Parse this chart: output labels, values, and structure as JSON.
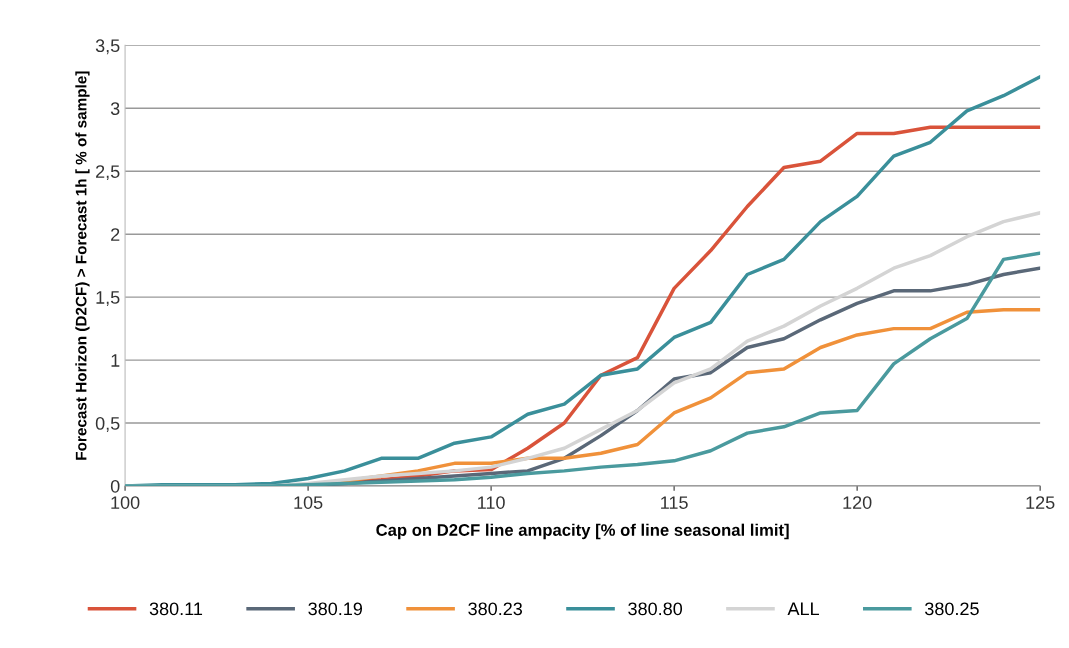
{
  "chart_data": {
    "type": "line",
    "xlabel": "Cap on D2CF line ampacity [% of line seasonal limit]",
    "ylabel": "Forecast Horizon (D2CF) > Forecast 1h [ % of sample]",
    "x": [
      100,
      101,
      102,
      103,
      104,
      105,
      106,
      107,
      108,
      109,
      110,
      111,
      112,
      113,
      114,
      115,
      116,
      117,
      118,
      119,
      120,
      121,
      122,
      123,
      124,
      125
    ],
    "series": [
      {
        "name": "380.11",
        "color": "#d9533a",
        "values": [
          null,
          null,
          null,
          null,
          null,
          0,
          0.03,
          0.05,
          0.08,
          0.12,
          0.13,
          0.3,
          0.5,
          0.88,
          1.02,
          1.57,
          1.87,
          2.22,
          2.53,
          2.58,
          2.8,
          2.8,
          2.85,
          2.85,
          2.85,
          2.85
        ]
      },
      {
        "name": "380.19",
        "color": "#5a6878",
        "values": [
          0,
          0,
          0,
          0,
          0,
          0,
          0.02,
          0.04,
          0.06,
          0.08,
          0.1,
          0.12,
          0.22,
          0.4,
          0.6,
          0.85,
          0.9,
          1.1,
          1.17,
          1.32,
          1.45,
          1.55,
          1.55,
          1.6,
          1.68,
          1.73
        ]
      },
      {
        "name": "380.23",
        "color": "#f0913a",
        "values": [
          null,
          null,
          null,
          null,
          null,
          0,
          0.04,
          0.08,
          0.12,
          0.18,
          0.18,
          0.22,
          0.22,
          0.26,
          0.33,
          0.58,
          0.7,
          0.9,
          0.93,
          1.1,
          1.2,
          1.25,
          1.25,
          1.38,
          1.4,
          1.4
        ]
      },
      {
        "name": "380.80",
        "color": "#3a8f9a",
        "values": [
          0,
          0.01,
          0.01,
          0.01,
          0.02,
          0.06,
          0.12,
          0.22,
          0.22,
          0.34,
          0.39,
          0.57,
          0.65,
          0.88,
          0.93,
          1.18,
          1.3,
          1.68,
          1.8,
          2.1,
          2.3,
          2.62,
          2.73,
          2.98,
          3.1,
          3.25
        ]
      },
      {
        "name": "ALL",
        "color": "#d4d4d4",
        "values": [
          0,
          0,
          0,
          0,
          0,
          0.02,
          0.05,
          0.08,
          0.1,
          0.12,
          0.15,
          0.22,
          0.3,
          0.45,
          0.6,
          0.82,
          0.93,
          1.15,
          1.27,
          1.43,
          1.57,
          1.73,
          1.83,
          1.98,
          2.1,
          2.17
        ]
      },
      {
        "name": "380.25",
        "color": "#4a9a9e",
        "values": [
          0,
          0,
          0,
          0,
          0,
          0.01,
          0.02,
          0.03,
          0.04,
          0.05,
          0.07,
          0.1,
          0.12,
          0.15,
          0.17,
          0.2,
          0.28,
          0.42,
          0.47,
          0.58,
          0.6,
          0.97,
          1.17,
          1.33,
          1.8,
          1.85
        ]
      }
    ],
    "xlim": [
      100,
      125
    ],
    "xticks": [
      100,
      105,
      110,
      115,
      120,
      125
    ],
    "ylim": [
      0,
      3.5
    ],
    "yticks": [
      0,
      {
        "value": 0.5,
        "label": "0,5"
      },
      1,
      {
        "value": 1.5,
        "label": "1,5"
      },
      2,
      {
        "value": 2.5,
        "label": "2,5"
      },
      3,
      {
        "value": 3.5,
        "label": "3,5"
      }
    ],
    "grid": "y",
    "legend": "bottom",
    "marker": "none",
    "line_style": "solid"
  }
}
